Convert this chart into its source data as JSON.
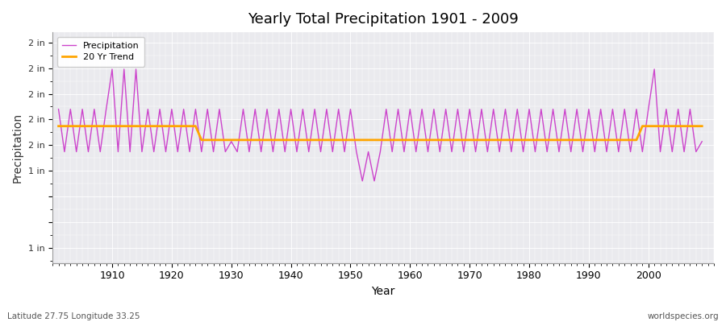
{
  "title": "Yearly Total Precipitation 1901 - 2009",
  "xlabel": "Year",
  "ylabel": "Precipitation",
  "lat_label": "Latitude 27.75 Longitude 33.25",
  "source_label": "worldspecies.org",
  "precip_color": "#CC44CC",
  "trend_color": "#FFA500",
  "bg_color": "#EAEAEE",
  "legend_precip": "Precipitation",
  "legend_trend": "20 Yr Trend",
  "years": [
    1901,
    1902,
    1903,
    1904,
    1905,
    1906,
    1907,
    1908,
    1909,
    1910,
    1911,
    1912,
    1913,
    1914,
    1915,
    1916,
    1917,
    1918,
    1919,
    1920,
    1921,
    1922,
    1923,
    1924,
    1925,
    1926,
    1927,
    1928,
    1929,
    1930,
    1931,
    1932,
    1933,
    1934,
    1935,
    1936,
    1937,
    1938,
    1939,
    1940,
    1941,
    1942,
    1943,
    1944,
    1945,
    1946,
    1947,
    1948,
    1949,
    1950,
    1951,
    1952,
    1953,
    1954,
    1955,
    1956,
    1957,
    1958,
    1959,
    1960,
    1961,
    1962,
    1963,
    1964,
    1965,
    1966,
    1967,
    1968,
    1969,
    1970,
    1971,
    1972,
    1973,
    1974,
    1975,
    1976,
    1977,
    1978,
    1979,
    1980,
    1981,
    1982,
    1983,
    1984,
    1985,
    1986,
    1987,
    1988,
    1989,
    1990,
    1991,
    1992,
    1993,
    1994,
    1995,
    1996,
    1997,
    1998,
    1999,
    2000,
    2001,
    2002,
    2003,
    2004,
    2005,
    2006,
    2007,
    2008,
    2009
  ],
  "precip_in": [
    1.7,
    0.87,
    1.7,
    0.87,
    1.7,
    0.87,
    1.7,
    0.87,
    1.7,
    2.48,
    0.87,
    2.48,
    0.87,
    2.48,
    0.87,
    1.7,
    0.87,
    1.7,
    0.87,
    1.7,
    0.87,
    1.7,
    0.87,
    1.7,
    0.87,
    1.7,
    0.87,
    1.7,
    0.87,
    1.07,
    0.87,
    1.7,
    0.87,
    1.7,
    0.87,
    1.7,
    0.87,
    1.7,
    0.87,
    1.7,
    0.87,
    1.7,
    0.87,
    1.7,
    0.87,
    1.7,
    0.87,
    1.7,
    0.87,
    1.7,
    0.87,
    0.3,
    0.87,
    0.3,
    0.87,
    1.7,
    0.87,
    1.7,
    0.87,
    1.7,
    0.87,
    1.7,
    0.87,
    1.7,
    0.87,
    1.7,
    0.87,
    1.7,
    0.87,
    1.7,
    0.87,
    1.7,
    0.87,
    1.7,
    0.87,
    1.7,
    0.87,
    1.7,
    0.87,
    1.7,
    0.87,
    1.7,
    0.87,
    1.7,
    0.87,
    1.7,
    0.87,
    1.7,
    0.87,
    1.7,
    0.87,
    1.7,
    0.87,
    1.7,
    0.87,
    1.7,
    0.87,
    1.7,
    0.87,
    1.7,
    2.48,
    0.87,
    1.7,
    0.87,
    1.7,
    0.87,
    1.7,
    0.87,
    1.07
  ],
  "trend_in": [
    1.37,
    1.37,
    1.37,
    1.37,
    1.37,
    1.37,
    1.37,
    1.37,
    1.37,
    1.37,
    1.37,
    1.37,
    1.37,
    1.37,
    1.37,
    1.37,
    1.37,
    1.37,
    1.37,
    1.37,
    1.37,
    1.37,
    1.37,
    1.37,
    1.1,
    1.1,
    1.1,
    1.1,
    1.1,
    1.1,
    1.1,
    1.1,
    1.1,
    1.1,
    1.1,
    1.1,
    1.1,
    1.1,
    1.1,
    1.1,
    1.1,
    1.1,
    1.1,
    1.1,
    1.1,
    1.1,
    1.1,
    1.1,
    1.1,
    1.1,
    1.1,
    1.1,
    1.1,
    1.1,
    1.1,
    1.1,
    1.1,
    1.1,
    1.1,
    1.1,
    1.1,
    1.1,
    1.1,
    1.1,
    1.1,
    1.1,
    1.1,
    1.1,
    1.1,
    1.1,
    1.1,
    1.1,
    1.1,
    1.1,
    1.1,
    1.1,
    1.1,
    1.1,
    1.1,
    1.1,
    1.1,
    1.1,
    1.1,
    1.1,
    1.1,
    1.1,
    1.1,
    1.1,
    1.1,
    1.1,
    1.1,
    1.1,
    1.1,
    1.1,
    1.1,
    1.1,
    1.1,
    1.1,
    1.37,
    1.37,
    1.37,
    1.37,
    1.37,
    1.37,
    1.37,
    1.37,
    1.37,
    1.37,
    1.37
  ],
  "ylim": [
    -1.3,
    3.2
  ],
  "yticks": [
    -1.0,
    -0.5,
    0.0,
    0.5,
    1.0,
    1.5,
    2.0,
    2.5,
    3.0
  ],
  "ytick_labels_display": [
    "1 in",
    "1 in",
    "2 in",
    "2 in",
    "2 in",
    "2 in",
    "2 in",
    "",
    ""
  ],
  "xlim": [
    1900,
    2011
  ],
  "xticks": [
    1910,
    1920,
    1930,
    1940,
    1950,
    1960,
    1970,
    1980,
    1990,
    2000
  ]
}
